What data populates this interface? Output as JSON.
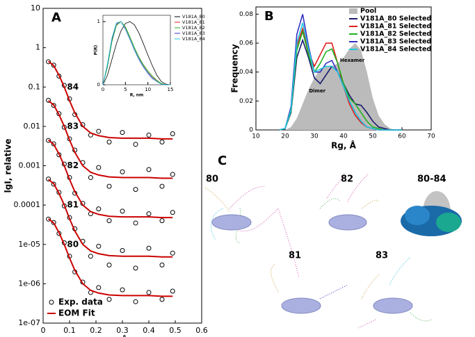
{
  "chart_data": [
    {
      "type": "scatter",
      "panel": "A",
      "ylabel": "lgI, relative",
      "xlabel": "q, Å⁻¹",
      "log_y": true,
      "xlim": [
        0,
        0.6
      ],
      "xticks": [
        0,
        0.1,
        0.2,
        0.3,
        0.4,
        0.5,
        0.6
      ],
      "ylim": [
        1e-07,
        10
      ],
      "yticks": [
        10,
        1,
        0.1,
        0.01,
        0.001,
        0.0001,
        {
          "value": 1e-05,
          "label": "1e-05"
        },
        {
          "value": 1e-06,
          "label": "1e-06"
        },
        {
          "value": 1e-07,
          "label": "1e-07"
        }
      ],
      "x": [
        0.02,
        0.04,
        0.06,
        0.08,
        0.1,
        0.12,
        0.15,
        0.18,
        0.21,
        0.25,
        0.3,
        0.35,
        0.4,
        0.45,
        0.49
      ],
      "data_color": "#000000",
      "fit_color": "#cc0000",
      "legend_corner": "lower left",
      "legend": {
        "data": "Exp. data",
        "fit": "EOM Fit"
      },
      "curves": [
        {
          "label": "84",
          "data": [
            0.44,
            0.36,
            0.19,
            0.11,
            0.05,
            0.02,
            0.011,
            0.006,
            0.0075,
            0.004,
            0.007,
            0.0035,
            0.006,
            0.004,
            0.0065
          ],
          "fit": [
            0.45,
            0.35,
            0.2,
            0.1,
            0.045,
            0.022,
            0.01,
            0.0068,
            0.0058,
            0.0052,
            0.005,
            0.005,
            0.005,
            0.0048,
            0.0048
          ]
        },
        {
          "label": "83",
          "data": [
            0.046,
            0.034,
            0.021,
            0.0095,
            0.0048,
            0.0025,
            0.0012,
            0.0005,
            0.0009,
            0.0003,
            0.0007,
            0.00025,
            0.0008,
            0.0003,
            0.0006
          ],
          "fit": [
            0.045,
            0.035,
            0.02,
            0.01,
            0.0045,
            0.0022,
            0.001,
            0.00068,
            0.00058,
            0.00052,
            0.0005,
            0.0005,
            0.0005,
            0.00048,
            0.00048
          ]
        },
        {
          "label": "82",
          "data": [
            0.0044,
            0.0036,
            0.0019,
            0.0011,
            0.0005,
            0.0002,
            0.00011,
            6e-05,
            8e-05,
            4e-05,
            7e-05,
            3.5e-05,
            6e-05,
            4e-05,
            6.5e-05
          ],
          "fit": [
            0.0045,
            0.0035,
            0.002,
            0.001,
            0.00045,
            0.00022,
            0.0001,
            6.8e-05,
            5.8e-05,
            5.2e-05,
            5e-05,
            5e-05,
            5e-05,
            4.8e-05,
            4.8e-05
          ]
        },
        {
          "label": "81",
          "data": [
            0.00046,
            0.00034,
            0.00021,
            9.5e-05,
            4.8e-05,
            2.5e-05,
            1.2e-05,
            5e-06,
            9e-06,
            3e-06,
            7e-06,
            2.5e-06,
            8e-06,
            3e-06,
            6e-06
          ],
          "fit": [
            0.00045,
            0.00035,
            0.0002,
            0.0001,
            4.5e-05,
            2.2e-05,
            1e-05,
            6.8e-06,
            5.8e-06,
            5.2e-06,
            5e-06,
            5e-06,
            5e-06,
            4.8e-06,
            4.8e-06
          ]
        },
        {
          "label": "80",
          "data": [
            4.4e-05,
            3.6e-05,
            1.9e-05,
            1.1e-05,
            5e-06,
            2e-06,
            1.1e-06,
            6e-07,
            8e-07,
            4e-07,
            7e-07,
            3.5e-07,
            6e-07,
            4e-07,
            6.5e-07
          ],
          "fit": [
            4.5e-05,
            3.5e-05,
            2e-05,
            1e-05,
            4.5e-06,
            2.2e-06,
            1e-06,
            6.8e-07,
            5.8e-07,
            5.2e-07,
            5e-07,
            5e-07,
            5e-07,
            4.8e-07,
            4.8e-07
          ]
        }
      ]
    },
    {
      "type": "line",
      "xlabel": "R, nm",
      "ylabel": "P(R)",
      "xlim": [
        0,
        15
      ],
      "xticks": [
        0,
        5,
        10,
        15
      ],
      "ylim": [
        0,
        1.1
      ],
      "yticks": [
        0,
        1
      ],
      "legend_corner": "upper right",
      "x": [
        0,
        1,
        2,
        3,
        4,
        5,
        6,
        7,
        8,
        9,
        10,
        11,
        12,
        13,
        14,
        15
      ],
      "series": [
        {
          "name": "V181A_80",
          "color": "#000000",
          "values": [
            0,
            0.15,
            0.4,
            0.65,
            0.85,
            0.97,
            1,
            0.95,
            0.82,
            0.65,
            0.47,
            0.3,
            0.15,
            0.05,
            0.01,
            0
          ]
        },
        {
          "name": "V181A_81",
          "color": "#e02020",
          "values": [
            0,
            0.3,
            0.7,
            0.95,
            1,
            0.9,
            0.74,
            0.57,
            0.42,
            0.3,
            0.2,
            0.12,
            0.06,
            0.02,
            0,
            0
          ]
        },
        {
          "name": "V181A_82",
          "color": "#20b020",
          "values": [
            0,
            0.28,
            0.68,
            0.94,
            1,
            0.92,
            0.76,
            0.59,
            0.44,
            0.32,
            0.22,
            0.14,
            0.07,
            0.02,
            0,
            0
          ]
        },
        {
          "name": "V181A_83",
          "color": "#3030c0",
          "values": [
            0,
            0.32,
            0.72,
            0.97,
            1,
            0.88,
            0.72,
            0.55,
            0.4,
            0.28,
            0.18,
            0.1,
            0.05,
            0.01,
            0,
            0
          ]
        },
        {
          "name": "V181A_84",
          "color": "#20c8e0",
          "values": [
            0,
            0.33,
            0.74,
            0.98,
            1,
            0.89,
            0.73,
            0.56,
            0.41,
            0.29,
            0.19,
            0.11,
            0.05,
            0.01,
            0,
            0
          ]
        }
      ]
    },
    {
      "type": "line",
      "panel": "B",
      "xlabel": "Rg, Å",
      "ylabel": "Frequency",
      "xlim": [
        10,
        70
      ],
      "xticks": [
        10,
        20,
        30,
        40,
        50,
        60,
        70
      ],
      "ylim": [
        0,
        0.085
      ],
      "yticks": [
        0,
        0.02,
        0.04,
        0.06,
        0.08
      ],
      "legend_corner": "upper right",
      "x": [
        18,
        20,
        22,
        24,
        26,
        28,
        30,
        32,
        34,
        36,
        38,
        40,
        42,
        44,
        46,
        48,
        50,
        52,
        54,
        56,
        58,
        60
      ],
      "annotations": [
        {
          "text": "Hexamer",
          "x": 43,
          "y": 0.048
        },
        {
          "text": "Dimer",
          "x": 31,
          "y": 0.027
        }
      ],
      "series": [
        {
          "name": "Pool",
          "color": "#bbbbbb",
          "kind": "area",
          "values": [
            0,
            0,
            0.002,
            0.008,
            0.018,
            0.028,
            0.036,
            0.042,
            0.044,
            0.044,
            0.046,
            0.05,
            0.056,
            0.06,
            0.055,
            0.04,
            0.022,
            0.01,
            0.004,
            0.001,
            0,
            0
          ]
        },
        {
          "name": "V181A_80 Selected",
          "color": "#1a1a6e",
          "values": [
            0,
            0.001,
            0.012,
            0.05,
            0.062,
            0.05,
            0.036,
            0.032,
            0.038,
            0.044,
            0.04,
            0.032,
            0.024,
            0.018,
            0.017,
            0.012,
            0.006,
            0.002,
            0.001,
            0,
            0,
            0
          ]
        },
        {
          "name": "V181A_81 Selected",
          "color": "#e02020",
          "values": [
            0,
            0.001,
            0.014,
            0.058,
            0.07,
            0.054,
            0.044,
            0.052,
            0.06,
            0.06,
            0.046,
            0.03,
            0.018,
            0.01,
            0.005,
            0.002,
            0.001,
            0,
            0,
            0,
            0,
            0
          ]
        },
        {
          "name": "V181A_82 Selected",
          "color": "#20b020",
          "values": [
            0,
            0.001,
            0.013,
            0.055,
            0.068,
            0.052,
            0.04,
            0.046,
            0.054,
            0.056,
            0.046,
            0.032,
            0.022,
            0.018,
            0.012,
            0.006,
            0.002,
            0.001,
            0,
            0,
            0,
            0
          ]
        },
        {
          "name": "V181A_83 Selected",
          "color": "#3030c0",
          "values": [
            0,
            0.001,
            0.016,
            0.066,
            0.08,
            0.058,
            0.04,
            0.04,
            0.046,
            0.048,
            0.04,
            0.03,
            0.02,
            0.012,
            0.006,
            0.002,
            0.001,
            0,
            0,
            0,
            0,
            0
          ]
        },
        {
          "name": "V181A_84 Selected",
          "color": "#20c8e0",
          "values": [
            0,
            0.001,
            0.014,
            0.06,
            0.074,
            0.056,
            0.04,
            0.042,
            0.044,
            0.044,
            0.04,
            0.03,
            0.02,
            0.012,
            0.006,
            0.002,
            0.001,
            0,
            0,
            0,
            0,
            0
          ]
        }
      ]
    }
  ],
  "panel_c": {
    "label": "C",
    "structures": [
      "80",
      "82",
      "80-84",
      "81",
      "83"
    ]
  }
}
